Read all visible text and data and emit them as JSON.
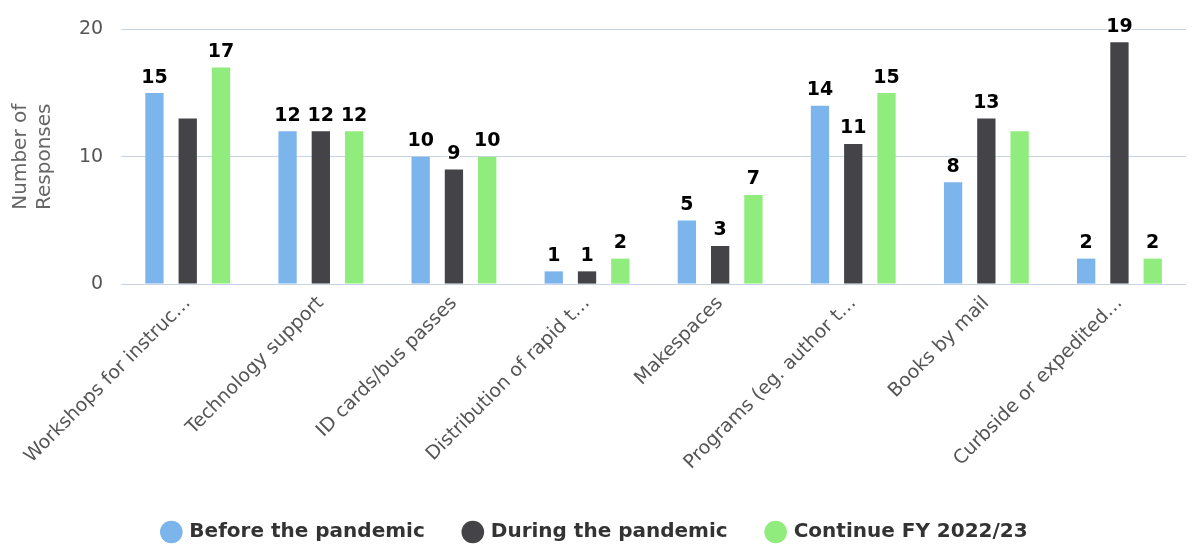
{
  "chart_data": {
    "type": "bar",
    "ylabel": "Number of Responses",
    "categories": [
      "Workshops for instruc…",
      "Technology support",
      "ID cards/bus passes",
      "Distribution of rapid t…",
      "Makespaces",
      "Programs (eg. author t…",
      "Books by mail",
      "Curbside or expedited…"
    ],
    "series": [
      {
        "name": "Before the pandemic",
        "color": "#7cb5ec",
        "values": [
          15,
          12,
          10,
          1,
          5,
          14,
          8,
          2
        ],
        "value_labels": [
          "15",
          "12",
          "10",
          "1",
          "5",
          "14",
          "8",
          "2"
        ]
      },
      {
        "name": "During the pandemic",
        "color": "#434348",
        "values": [
          13,
          12,
          9,
          1,
          3,
          11,
          13,
          19
        ],
        "value_labels": [
          null,
          "12",
          "9",
          "1",
          "3",
          "11",
          "13",
          "19"
        ]
      },
      {
        "name": "Continue FY 2022/23",
        "color": "#90ed7d",
        "values": [
          17,
          12,
          10,
          2,
          7,
          15,
          12,
          2
        ],
        "value_labels": [
          "17",
          "12",
          "10",
          "2",
          "7",
          "15",
          null,
          "2"
        ]
      }
    ],
    "ylim": [
      0,
      20
    ],
    "yticks": [
      0,
      10,
      20
    ],
    "grid": "y",
    "legend": "bottom"
  }
}
